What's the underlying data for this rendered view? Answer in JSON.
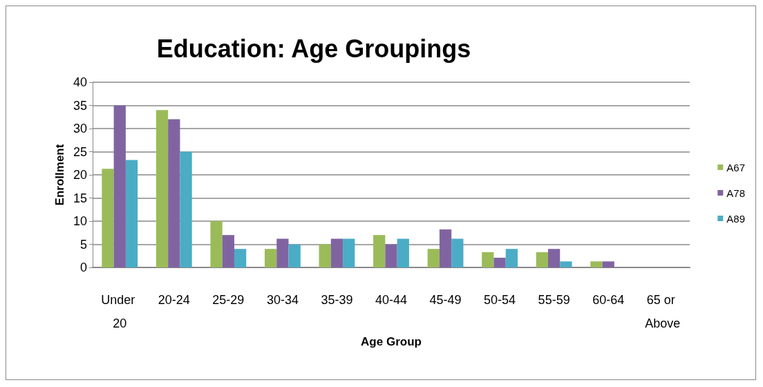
{
  "chart_data": {
    "type": "bar",
    "title": "Education: Age Groupings",
    "xlabel": "Age Group",
    "ylabel": "Enrollment",
    "categories": [
      "Under 20",
      "20-24",
      "25-29",
      "30-34",
      "35-39",
      "40-44",
      "45-49",
      "50-54",
      "55-59",
      "60-64",
      "65 or Above"
    ],
    "series": [
      {
        "name": "A67",
        "color": "#9bbb59",
        "values": [
          21.3,
          34,
          10,
          4,
          5,
          7,
          4,
          3.3,
          3.3,
          1.3,
          0
        ]
      },
      {
        "name": "A78",
        "color": "#8064a2",
        "values": [
          35,
          32,
          7,
          6.2,
          6.2,
          5,
          8.2,
          2.1,
          4,
          1.3,
          0
        ]
      },
      {
        "name": "A89",
        "color": "#4bacc6",
        "values": [
          23.2,
          25,
          4,
          5,
          6.2,
          6.2,
          6.2,
          4,
          1.3,
          0,
          0
        ]
      }
    ],
    "ylim": [
      0,
      40
    ],
    "yticks": [
      0,
      5,
      10,
      15,
      20,
      25,
      30,
      35,
      40
    ],
    "grid": "y",
    "legend": "right"
  }
}
